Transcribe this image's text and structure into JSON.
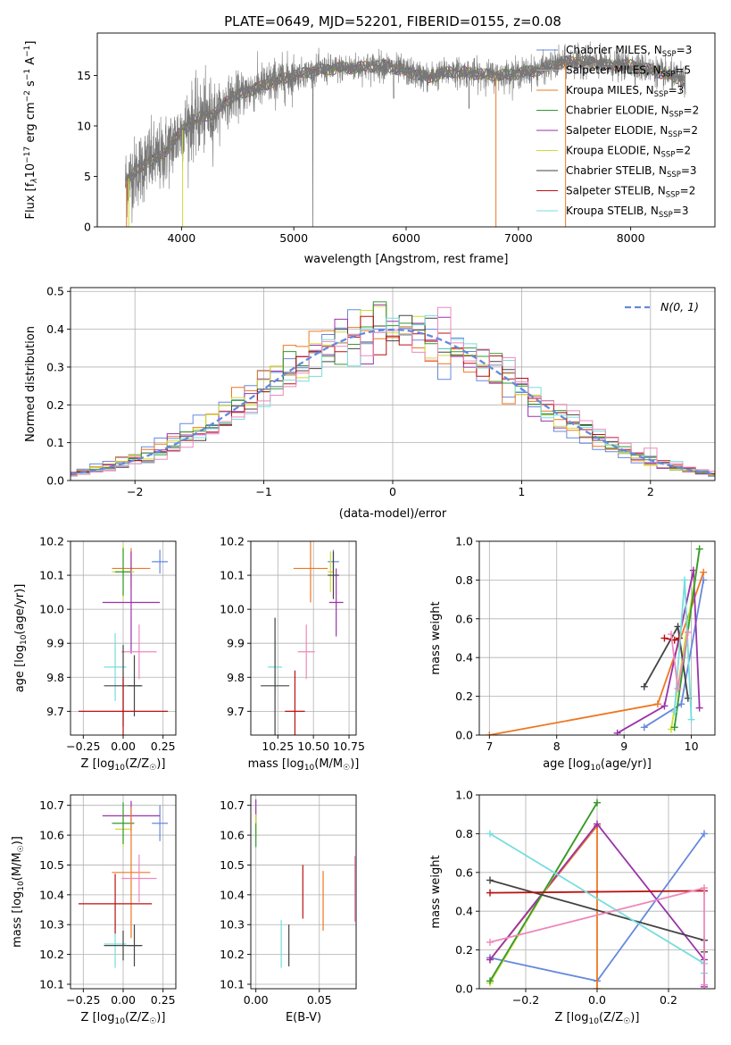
{
  "figure_title": "PLATE=0649, MJD=52201, FIBERID=0155, z=0.08",
  "chart_data": [
    {
      "id": "spectrum",
      "type": "line",
      "xlabel": "wavelength [Angstrom, rest frame]",
      "ylabel": "Flux [f",
      "ylabel_rest": "10",
      "ylabel_sup1": "−17",
      "ylabel_mid": " erg cm",
      "ylabel_sup2": "−2",
      "ylabel_mid2": " s",
      "ylabel_sup3": "−1",
      "ylabel_end": " A",
      "ylabel_sup4": "−1",
      "ylabel_close": "]",
      "xlim": [
        3250,
        8750
      ],
      "ylim": [
        0,
        19.2
      ],
      "xticks": [
        "4000",
        "5000",
        "6000",
        "7000",
        "8000"
      ],
      "xtick_values": [
        4000,
        5000,
        6000,
        7000,
        8000
      ],
      "yticks": [
        "0",
        "5",
        "10",
        "15"
      ],
      "ytick_values": [
        0,
        5,
        10,
        15
      ],
      "grid": false,
      "legend": [
        {
          "pre": "Chabrier MILES, N",
          "sub": "SSP",
          "post": "=3",
          "color": "#6688dd"
        },
        {
          "pre": "Salpeter MILES, N",
          "sub": "SSP",
          "post": "=5",
          "color": "#aaaaaa"
        },
        {
          "pre": "Kroupa MILES, N",
          "sub": "SSP",
          "post": "=3",
          "color": "#ee7722"
        },
        {
          "pre": "Chabrier ELODIE, N",
          "sub": "SSP",
          "post": "=2",
          "color": "#339933"
        },
        {
          "pre": "Salpeter ELODIE, N",
          "sub": "SSP",
          "post": "=2",
          "color": "#9933aa"
        },
        {
          "pre": "Kroupa ELODIE, N",
          "sub": "SSP",
          "post": "=2",
          "color": "#ccdd33"
        },
        {
          "pre": "Chabrier STELIB, N",
          "sub": "SSP",
          "post": "=3",
          "color": "#444444"
        },
        {
          "pre": "Salpeter STELIB, N",
          "sub": "SSP",
          "post": "=2",
          "color": "#bb1111"
        },
        {
          "pre": "Kroupa STELIB, N",
          "sub": "SSP",
          "post": "=3",
          "color": "#77dddd"
        }
      ],
      "legend_position": "right",
      "continuum_knots": {
        "wavelength": [
          3500,
          3600,
          3700,
          3800,
          3900,
          4000,
          4100,
          4200,
          4300,
          4400,
          4600,
          4800,
          5000,
          5200,
          5400,
          5600,
          5800,
          6000,
          6200,
          6400,
          6600,
          6800,
          7000,
          7200,
          7400,
          7600,
          7800,
          8000,
          8200,
          8400,
          8500
        ],
        "flux": [
          4.5,
          5.5,
          6.5,
          6.8,
          8.0,
          9.5,
          10.5,
          11.0,
          11.2,
          12.5,
          13.5,
          14.3,
          15.0,
          15.5,
          15.7,
          15.8,
          16.0,
          15.4,
          14.8,
          15.4,
          15.2,
          15.0,
          15.2,
          15.6,
          16.3,
          16.4,
          16.0,
          16.0,
          15.5,
          14.8,
          14.4
        ]
      }
    },
    {
      "id": "residuals",
      "type": "histogram",
      "xlabel": "(data-model)/error",
      "ylabel": "Normed distribution",
      "xlim": [
        -2.5,
        2.5
      ],
      "ylim": [
        0,
        0.51
      ],
      "xticks": [
        "−2",
        "−1",
        "0",
        "1",
        "2"
      ],
      "xtick_values": [
        -2,
        -1,
        0,
        1,
        2
      ],
      "yticks": [
        "0.0",
        "0.1",
        "0.2",
        "0.3",
        "0.4",
        "0.5"
      ],
      "ytick_values": [
        0,
        0.1,
        0.2,
        0.3,
        0.4,
        0.5
      ],
      "grid": true,
      "legend": [
        {
          "label": "N(0, 1)",
          "color": "#6688dd",
          "style": "dashed"
        }
      ],
      "legend_position": "upper right",
      "bin_width": 0.1
    },
    {
      "id": "age-vs-Z",
      "type": "scatter",
      "xlabel": "Z [log",
      "xlabel_sub": "10",
      "xlabel_end": "(Z/Z",
      "xlabel_sun": "☉",
      "xlabel_close": ")]",
      "ylabel": "age  [log",
      "ylabel_sub": "10",
      "ylabel_end": "(age/yr)]",
      "xlim": [
        -0.33,
        0.33
      ],
      "ylim": [
        9.63,
        10.2
      ],
      "xticks": [
        "−0.25",
        "0.00",
        "0.25"
      ],
      "xtick_values": [
        -0.25,
        0,
        0.25
      ],
      "yticks": [
        "9.7",
        "9.8",
        "9.9",
        "10.0",
        "10.1",
        "10.2"
      ],
      "ytick_values": [
        9.7,
        9.8,
        9.9,
        10.0,
        10.1,
        10.2
      ],
      "grid": true,
      "points": [
        {
          "x": 0.23,
          "y": 10.14,
          "xerr": 0.05,
          "yerr": 0.035,
          "color": "#6688dd"
        },
        {
          "x": 0.05,
          "y": 10.12,
          "xerr": 0.12,
          "yerr": 0.06,
          "color": "#ee7722"
        },
        {
          "x": 0.05,
          "y": 10.02,
          "xerr": 0.18,
          "yerr": 0.15,
          "color": "#9933aa"
        },
        {
          "x": 0.0,
          "y": 10.11,
          "xerr": 0.07,
          "yerr": 0.08,
          "color": "#ccdd33"
        },
        {
          "x": 0.0,
          "y": 10.11,
          "xerr": 0.05,
          "yerr": 0.07,
          "color": "#339933"
        },
        {
          "x": 0.1,
          "y": 9.875,
          "xerr": 0.11,
          "yerr": 0.08,
          "color": "#ee88bb"
        },
        {
          "x": -0.05,
          "y": 9.83,
          "xerr": 0.07,
          "yerr": 0.1,
          "color": "#77dddd"
        },
        {
          "x": 0.0,
          "y": 9.775,
          "xerr": 0.12,
          "yerr": 0.12,
          "color": "#444444"
        },
        {
          "x": 0.07,
          "y": 9.775,
          "xerr": 0.04,
          "yerr": 0.09,
          "color": "#444444"
        },
        {
          "x": 0.0,
          "y": 9.7,
          "xerr": 0.28,
          "yerr": 0.1,
          "color": "#bb1111"
        }
      ]
    },
    {
      "id": "age-vs-mass",
      "type": "scatter",
      "xlabel": "mass [log",
      "xlabel_sub": "10",
      "xlabel_end": "(M/M",
      "xlabel_sun": "☉",
      "xlabel_close": ")]",
      "xlim": [
        10.06,
        10.8
      ],
      "ylim": [
        9.63,
        10.2
      ],
      "xticks": [
        "10.25",
        "10.50",
        "10.75"
      ],
      "xtick_values": [
        10.25,
        10.5,
        10.75
      ],
      "yticks": [
        "9.7",
        "9.8",
        "9.9",
        "10.0",
        "10.1",
        "10.2"
      ],
      "ytick_values": [
        9.7,
        9.8,
        9.9,
        10.0,
        10.1,
        10.2
      ],
      "grid": true,
      "points": [
        {
          "x": 10.64,
          "y": 10.14,
          "xerr": 0.04,
          "yerr": 0.035,
          "color": "#6688dd"
        },
        {
          "x": 10.48,
          "y": 10.12,
          "xerr": 0.12,
          "yerr": 0.1,
          "color": "#ee7722"
        },
        {
          "x": 10.66,
          "y": 10.02,
          "xerr": 0.05,
          "yerr": 0.1,
          "color": "#9933aa"
        },
        {
          "x": 10.62,
          "y": 10.11,
          "xerr": 0.02,
          "yerr": 0.06,
          "color": "#ccdd33"
        },
        {
          "x": 10.64,
          "y": 10.1,
          "xerr": 0.04,
          "yerr": 0.07,
          "color": "#444444"
        },
        {
          "x": 10.45,
          "y": 9.875,
          "xerr": 0.06,
          "yerr": 0.08,
          "color": "#ee88bb"
        },
        {
          "x": 10.23,
          "y": 9.83,
          "xerr": 0.05,
          "yerr": 0.08,
          "color": "#77dddd"
        },
        {
          "x": 10.23,
          "y": 9.775,
          "xerr": 0.1,
          "yerr": 0.2,
          "color": "#444444"
        },
        {
          "x": 10.37,
          "y": 9.7,
          "xerr": 0.07,
          "yerr": 0.12,
          "color": "#bb1111"
        }
      ]
    },
    {
      "id": "weight-vs-age",
      "type": "line",
      "xlabel": "age  [log",
      "xlabel_sub": "10",
      "xlabel_end": "(age/yr)]",
      "ylabel": "mass weight",
      "xlim": [
        6.85,
        10.35
      ],
      "ylim": [
        0,
        1.0
      ],
      "xticks": [
        "7",
        "8",
        "9",
        "10"
      ],
      "xtick_values": [
        7,
        8,
        9,
        10
      ],
      "yticks": [
        "0.0",
        "0.2",
        "0.4",
        "0.6",
        "0.8",
        "1.0"
      ],
      "ytick_values": [
        0,
        0.2,
        0.4,
        0.6,
        0.8,
        1.0
      ],
      "grid": true,
      "series": [
        {
          "color": "#6688dd",
          "x": [
            9.3,
            9.85,
            10.18
          ],
          "y": [
            0.04,
            0.16,
            0.8
          ]
        },
        {
          "color": "#ee7722",
          "x": [
            7.0,
            9.5,
            10.18
          ],
          "y": [
            0.0,
            0.16,
            0.84
          ]
        },
        {
          "color": "#9933aa",
          "x": [
            8.9,
            9.6,
            10.03,
            10.12
          ],
          "y": [
            0.01,
            0.15,
            0.85,
            0.14
          ]
        },
        {
          "color": "#ccdd33",
          "x": [
            9.7,
            10.12
          ],
          "y": [
            0.03,
            0.96
          ]
        },
        {
          "color": "#339933",
          "x": [
            9.75,
            10.12
          ],
          "y": [
            0.04,
            0.96
          ]
        },
        {
          "color": "#444444",
          "x": [
            9.3,
            9.8,
            9.95
          ],
          "y": [
            0.25,
            0.56,
            0.19
          ]
        },
        {
          "color": "#bb1111",
          "x": [
            9.6,
            9.75,
            9.82
          ],
          "y": [
            0.5,
            0.49,
            0.5
          ]
        },
        {
          "color": "#77dddd",
          "x": [
            9.75,
            9.9,
            10.0
          ],
          "y": [
            0.12,
            0.8,
            0.08
          ]
        },
        {
          "color": "#ee88bb",
          "x": [
            9.7,
            9.8,
            9.95
          ],
          "y": [
            0.52,
            0.24,
            0.53
          ]
        }
      ]
    },
    {
      "id": "mass-vs-Z",
      "type": "scatter",
      "xlabel": "Z [log",
      "xlabel_sub": "10",
      "xlabel_end": "(Z/Z",
      "xlabel_sun": "☉",
      "xlabel_close": ")]",
      "ylabel": "mass [log",
      "ylabel_sub": "10",
      "ylabel_end": "(M/M",
      "ylabel_sun": "☉",
      "ylabel_close": ")]",
      "xlim": [
        -0.33,
        0.33
      ],
      "ylim": [
        10.085,
        10.735
      ],
      "xticks": [
        "−0.25",
        "0.00",
        "0.25"
      ],
      "xtick_values": [
        -0.25,
        0,
        0.25
      ],
      "yticks": [
        "10.1",
        "10.2",
        "10.3",
        "10.4",
        "10.5",
        "10.6",
        "10.7"
      ],
      "ytick_values": [
        10.1,
        10.2,
        10.3,
        10.4,
        10.5,
        10.6,
        10.7
      ],
      "grid": true,
      "points": [
        {
          "x": 0.23,
          "y": 10.64,
          "xerr": 0.05,
          "yerr": 0.06,
          "color": "#6688dd"
        },
        {
          "x": 0.05,
          "y": 10.665,
          "xerr": 0.18,
          "yerr": 0.05,
          "color": "#9933aa"
        },
        {
          "x": 0.0,
          "y": 10.62,
          "xerr": 0.05,
          "yerr": 0.06,
          "color": "#ccdd33"
        },
        {
          "x": 0.0,
          "y": 10.64,
          "xerr": 0.07,
          "yerr": 0.07,
          "color": "#339933"
        },
        {
          "x": 0.05,
          "y": 10.475,
          "xerr": 0.12,
          "yerr": 0.22,
          "color": "#ee7722"
        },
        {
          "x": 0.1,
          "y": 10.455,
          "xerr": 0.11,
          "yerr": 0.08,
          "color": "#ee88bb"
        },
        {
          "x": -0.05,
          "y": 10.235,
          "xerr": 0.07,
          "yerr": 0.08,
          "color": "#77dddd"
        },
        {
          "x": 0.0,
          "y": 10.23,
          "xerr": 0.12,
          "yerr": 0.05,
          "color": "#444444"
        },
        {
          "x": 0.07,
          "y": 10.23,
          "xerr": 0.04,
          "yerr": 0.07,
          "color": "#444444"
        },
        {
          "x": -0.05,
          "y": 10.37,
          "xerr": 0.23,
          "yerr": 0.1,
          "color": "#bb1111"
        }
      ]
    },
    {
      "id": "mass-vs-EBV",
      "type": "scatter",
      "xlabel": "E(B-V)",
      "xlim": [
        -0.004,
        0.079
      ],
      "ylim": [
        10.085,
        10.735
      ],
      "xticks": [
        "0.00",
        "0.05"
      ],
      "xtick_values": [
        0,
        0.05
      ],
      "yticks": [
        "10.1",
        "10.2",
        "10.3",
        "10.4",
        "10.5",
        "10.6",
        "10.7"
      ],
      "ytick_values": [
        10.1,
        10.2,
        10.3,
        10.4,
        10.5,
        10.6,
        10.7
      ],
      "grid": true,
      "points": [
        {
          "x": 0.0,
          "y": 10.68,
          "yerr": 0.04,
          "color": "#9933aa"
        },
        {
          "x": 0.0,
          "y": 10.63,
          "yerr": 0.04,
          "color": "#ccdd33"
        },
        {
          "x": 0.0,
          "y": 10.6,
          "yerr": 0.04,
          "color": "#339933"
        },
        {
          "x": 0.02,
          "y": 10.235,
          "yerr": 0.08,
          "color": "#77dddd"
        },
        {
          "x": 0.026,
          "y": 10.23,
          "yerr": 0.07,
          "color": "#444444"
        },
        {
          "x": 0.037,
          "y": 10.41,
          "yerr": 0.09,
          "color": "#bb1111"
        },
        {
          "x": 0.053,
          "y": 10.38,
          "yerr": 0.1,
          "color": "#ee7722"
        },
        {
          "x": 0.078,
          "y": 10.42,
          "yerr": 0.11,
          "color": "#ee88bb"
        }
      ]
    },
    {
      "id": "weight-vs-Z",
      "type": "line",
      "xlabel": "Z [log",
      "xlabel_sub": "10",
      "xlabel_end": "(Z/Z",
      "xlabel_sun": "☉",
      "xlabel_close": ")]",
      "ylabel": "mass weight",
      "xlim": [
        -0.33,
        0.33
      ],
      "ylim": [
        0,
        1.0
      ],
      "xticks": [
        "−0.2",
        "0.0",
        "0.2"
      ],
      "xtick_values": [
        -0.2,
        0,
        0.2
      ],
      "yticks": [
        "0.0",
        "0.2",
        "0.4",
        "0.6",
        "0.8",
        "1.0"
      ],
      "ytick_values": [
        0,
        0.2,
        0.4,
        0.6,
        0.8,
        1.0
      ],
      "grid": true,
      "series": [
        {
          "color": "#6688dd",
          "x": [
            -0.3,
            0.0,
            0.3
          ],
          "y": [
            0.16,
            0.04,
            0.8
          ]
        },
        {
          "color": "#ee7722",
          "x": [
            -0.3,
            0.0,
            0.0
          ],
          "y": [
            0.15,
            0.84,
            0.0
          ]
        },
        {
          "color": "#9933aa",
          "x": [
            -0.3,
            0.0,
            0.3,
            0.3
          ],
          "y": [
            0.15,
            0.85,
            0.15,
            0.01
          ]
        },
        {
          "color": "#ccdd33",
          "x": [
            -0.3,
            0.0
          ],
          "y": [
            0.03,
            0.96
          ]
        },
        {
          "color": "#339933",
          "x": [
            -0.3,
            0.0
          ],
          "y": [
            0.04,
            0.96
          ]
        },
        {
          "color": "#444444",
          "x": [
            -0.3,
            0.3,
            0.3
          ],
          "y": [
            0.56,
            0.25,
            0.19
          ]
        },
        {
          "color": "#bb1111",
          "x": [
            -0.3,
            0.3
          ],
          "y": [
            0.495,
            0.505
          ]
        },
        {
          "color": "#77dddd",
          "x": [
            -0.3,
            0.3,
            0.3
          ],
          "y": [
            0.8,
            0.13,
            0.08
          ]
        },
        {
          "color": "#ee88bb",
          "x": [
            -0.3,
            0.3,
            0.3
          ],
          "y": [
            0.24,
            0.52,
            0.02
          ]
        }
      ]
    }
  ]
}
